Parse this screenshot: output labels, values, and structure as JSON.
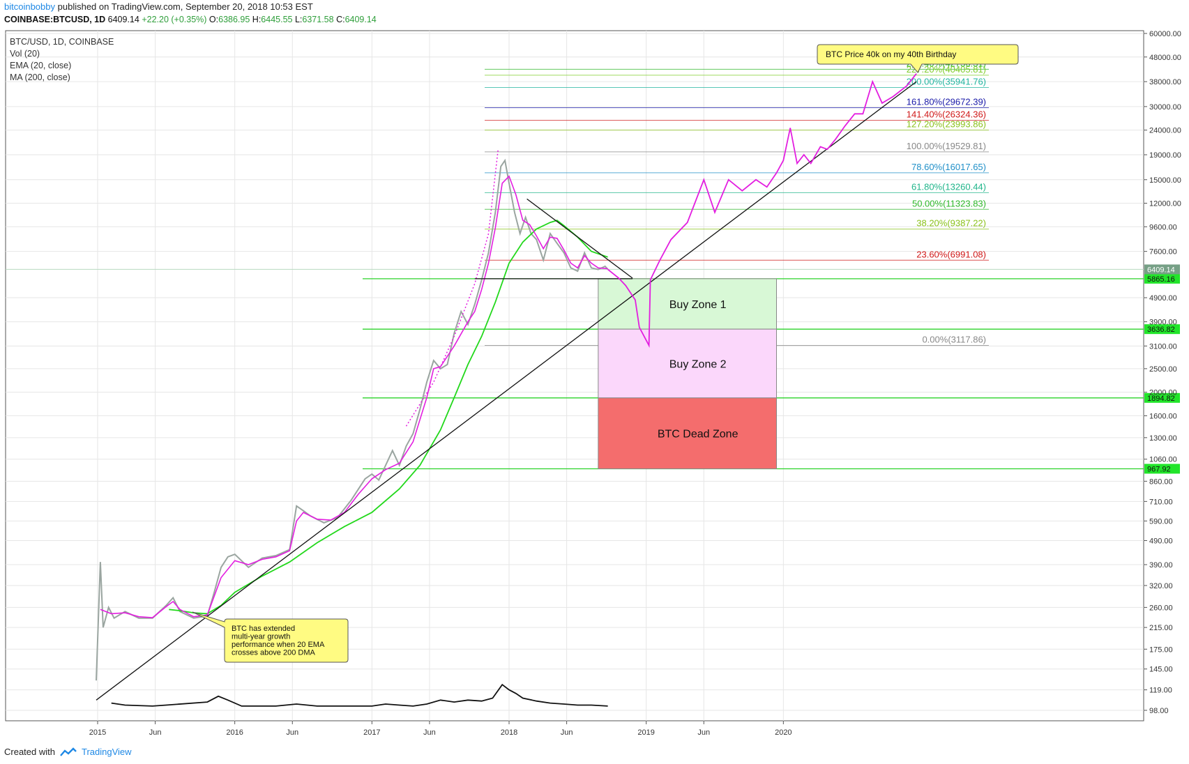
{
  "header": {
    "author": "bitcoinbobby",
    "published": "published on TradingView.com, September 20, 2018 10:53 EST"
  },
  "subheader": {
    "symbol": "COINBASE:BTCUSD, 1D",
    "price": "6409.14",
    "change": "+22.20 (+0.35%)",
    "o_label": "O:",
    "o": "6386.95",
    "h_label": "H:",
    "h": "6445.55",
    "l_label": "L:",
    "l": "6371.58",
    "c_label": "C:",
    "c": "6409.14"
  },
  "footer": {
    "created": "Created with",
    "brand": "TradingView"
  },
  "colors": {
    "price_candle": "#9aa5a0",
    "ema": "#e31ee0",
    "ma": "#22d81b",
    "volume": "#111111",
    "grid": "#e6e6e6",
    "zone1": "#d8f8d6",
    "zone2": "#fbd7fb",
    "dead_zone": "#f46d6d",
    "level": "#2bd32a"
  },
  "chart_data": {
    "type": "line",
    "title": "BTC/USD, 1D, COINBASE",
    "indicators": [
      "Vol (20)",
      "EMA (20, close)",
      "MA (200, close)"
    ],
    "y_scale": "log",
    "ylim": [
      85,
      65000
    ],
    "x_ticks": [
      "2015",
      "Jun",
      "2016",
      "Jun",
      "2017",
      "Jun",
      "2018",
      "Jun",
      "2019",
      "Jun",
      "2020"
    ],
    "x_tick_values": [
      2015.0,
      2015.42,
      2016.0,
      2016.42,
      2017.0,
      2017.42,
      2018.0,
      2018.42,
      2019.0,
      2019.42,
      2020.0
    ],
    "y_ticks": [
      "60000.00",
      "48000.00",
      "38000.00",
      "30000.00",
      "24000.00",
      "19000.00",
      "15000.00",
      "12000.00",
      "9600.00",
      "7600.00",
      "4900.00",
      "3900.00",
      "3100.00",
      "2500.00",
      "2000.00",
      "1600.00",
      "1300.00",
      "1060.00",
      "860.00",
      "710.00",
      "590.00",
      "490.00",
      "390.00",
      "320.00",
      "260.00",
      "215.00",
      "175.00",
      "145.00",
      "119.00",
      "98.00"
    ],
    "y_tick_values": [
      60000,
      48000,
      38000,
      30000,
      24000,
      19000,
      15000,
      12000,
      9600,
      7600,
      4900,
      3900,
      3100,
      2500,
      2000,
      1600,
      1300,
      1060,
      860,
      710,
      590,
      490,
      390,
      320,
      260,
      215,
      175,
      145,
      119,
      98
    ],
    "last_price_label": "6409.14",
    "last_price": 6409.14,
    "fib_levels": [
      {
        "label": "241.40%(42736.31)",
        "value": 42736.31,
        "color": "#2fb82a"
      },
      {
        "label": "227.20%(40405.81)",
        "value": 40405.81,
        "color": "#7fcd2a"
      },
      {
        "label": "200.00%(35941.76)",
        "value": 35941.76,
        "color": "#22b5a0"
      },
      {
        "label": "161.80%(29672.39)",
        "value": 29672.39,
        "color": "#1a1aa8"
      },
      {
        "label": "141.40%(26324.36)",
        "value": 26324.36,
        "color": "#d01818"
      },
      {
        "label": "127.20%(23993.86)",
        "value": 23993.86,
        "color": "#8ac21a"
      },
      {
        "label": "100.00%(19529.81)",
        "value": 19529.81,
        "color": "#888888"
      },
      {
        "label": "78.60%(16017.65)",
        "value": 16017.65,
        "color": "#1f8fc8"
      },
      {
        "label": "61.80%(13260.44)",
        "value": 13260.44,
        "color": "#1fb58a"
      },
      {
        "label": "50.00%(11323.83)",
        "value": 11323.83,
        "color": "#2fb82a"
      },
      {
        "label": "38.20%(9387.22)",
        "value": 9387.22,
        "color": "#8ac21a"
      },
      {
        "label": "23.60%(6991.08)",
        "value": 6991.08,
        "color": "#d01818"
      },
      {
        "label": "0.00%(3117.86)",
        "value": 3117.86,
        "color": "#888888"
      }
    ],
    "horizontal_levels": [
      {
        "label": "5865.16",
        "value": 5865.16
      },
      {
        "label": "3636.82",
        "value": 3636.82
      },
      {
        "label": "1894.82",
        "value": 1894.82
      },
      {
        "label": "967.92",
        "value": 967.92
      }
    ],
    "zones": [
      {
        "label": "Buy Zone 1",
        "low": 3636.82,
        "high": 5865.16,
        "x_start": 2018.65,
        "x_end": 2019.95
      },
      {
        "label": "Buy Zone 2",
        "low": 1894.82,
        "high": 3636.82,
        "x_start": 2018.65,
        "x_end": 2019.95
      },
      {
        "label": "BTC Dead Zone",
        "low": 967.92,
        "high": 1894.82,
        "x_start": 2018.65,
        "x_end": 2019.95
      }
    ],
    "annotations": [
      {
        "text": "BTC Price 40k on my 40th Birthday",
        "x": 2020.0,
        "y": 44000
      },
      {
        "text": "BTC has extended multi-year growth performance when 20 EMA crosses above 200 DMA",
        "x": 2015.95,
        "y": 205
      }
    ],
    "price_series": {
      "name": "",
      "points": [
        [
          2014.99,
          130
        ],
        [
          2015.02,
          400
        ],
        [
          2015.04,
          215
        ],
        [
          2015.08,
          260
        ],
        [
          2015.12,
          235
        ],
        [
          2015.2,
          250
        ],
        [
          2015.3,
          235
        ],
        [
          2015.4,
          235
        ],
        [
          2015.5,
          265
        ],
        [
          2015.55,
          285
        ],
        [
          2015.6,
          250
        ],
        [
          2015.7,
          235
        ],
        [
          2015.8,
          240
        ],
        [
          2015.85,
          300
        ],
        [
          2015.9,
          380
        ],
        [
          2015.95,
          420
        ],
        [
          2016.0,
          430
        ],
        [
          2016.1,
          380
        ],
        [
          2016.2,
          415
        ],
        [
          2016.3,
          425
        ],
        [
          2016.4,
          450
        ],
        [
          2016.45,
          680
        ],
        [
          2016.5,
          650
        ],
        [
          2016.55,
          620
        ],
        [
          2016.65,
          580
        ],
        [
          2016.75,
          610
        ],
        [
          2016.85,
          720
        ],
        [
          2016.95,
          880
        ],
        [
          2017.0,
          920
        ],
        [
          2017.05,
          870
        ],
        [
          2017.1,
          1000
        ],
        [
          2017.15,
          1150
        ],
        [
          2017.2,
          1000
        ],
        [
          2017.25,
          1200
        ],
        [
          2017.3,
          1350
        ],
        [
          2017.35,
          1700
        ],
        [
          2017.4,
          2200
        ],
        [
          2017.45,
          2700
        ],
        [
          2017.5,
          2500
        ],
        [
          2017.55,
          2600
        ],
        [
          2017.6,
          3500
        ],
        [
          2017.65,
          4300
        ],
        [
          2017.7,
          3800
        ],
        [
          2017.75,
          4600
        ],
        [
          2017.8,
          5800
        ],
        [
          2017.85,
          7500
        ],
        [
          2017.9,
          11000
        ],
        [
          2017.94,
          17000
        ],
        [
          2017.97,
          18000
        ],
        [
          2018.0,
          14500
        ],
        [
          2018.04,
          11000
        ],
        [
          2018.08,
          9000
        ],
        [
          2018.12,
          10500
        ],
        [
          2018.16,
          9000
        ],
        [
          2018.2,
          8500
        ],
        [
          2018.25,
          7000
        ],
        [
          2018.3,
          9000
        ],
        [
          2018.35,
          8200
        ],
        [
          2018.4,
          7500
        ],
        [
          2018.45,
          6500
        ],
        [
          2018.5,
          6300
        ],
        [
          2018.55,
          7500
        ],
        [
          2018.6,
          6500
        ],
        [
          2018.65,
          6400
        ],
        [
          2018.7,
          6600
        ],
        [
          2018.72,
          6409
        ]
      ]
    },
    "ema_series": {
      "name": "",
      "points": [
        [
          2015.02,
          255
        ],
        [
          2015.1,
          245
        ],
        [
          2015.2,
          247
        ],
        [
          2015.3,
          238
        ],
        [
          2015.4,
          236
        ],
        [
          2015.5,
          262
        ],
        [
          2015.55,
          275
        ],
        [
          2015.6,
          255
        ],
        [
          2015.7,
          238
        ],
        [
          2015.8,
          242
        ],
        [
          2015.9,
          345
        ],
        [
          2016.0,
          405
        ],
        [
          2016.1,
          390
        ],
        [
          2016.2,
          410
        ],
        [
          2016.3,
          420
        ],
        [
          2016.4,
          445
        ],
        [
          2016.45,
          590
        ],
        [
          2016.5,
          640
        ],
        [
          2016.6,
          600
        ],
        [
          2016.7,
          595
        ],
        [
          2016.8,
          640
        ],
        [
          2016.9,
          760
        ],
        [
          2017.0,
          880
        ],
        [
          2017.1,
          960
        ],
        [
          2017.2,
          1020
        ],
        [
          2017.3,
          1250
        ],
        [
          2017.4,
          1900
        ],
        [
          2017.45,
          2500
        ],
        [
          2017.5,
          2550
        ],
        [
          2017.6,
          3100
        ],
        [
          2017.7,
          3900
        ],
        [
          2017.75,
          4300
        ],
        [
          2017.8,
          5300
        ],
        [
          2017.85,
          6800
        ],
        [
          2017.9,
          9500
        ],
        [
          2017.95,
          14500
        ],
        [
          2018.0,
          15500
        ],
        [
          2018.05,
          13000
        ],
        [
          2018.1,
          10200
        ],
        [
          2018.15,
          9800
        ],
        [
          2018.2,
          8800
        ],
        [
          2018.25,
          7800
        ],
        [
          2018.3,
          8700
        ],
        [
          2018.35,
          8600
        ],
        [
          2018.4,
          7700
        ],
        [
          2018.45,
          6800
        ],
        [
          2018.5,
          6500
        ],
        [
          2018.55,
          7300
        ],
        [
          2018.6,
          6800
        ],
        [
          2018.65,
          6500
        ],
        [
          2018.72,
          6450
        ]
      ]
    },
    "ma_series": {
      "name": "",
      "points": [
        [
          2015.52,
          255
        ],
        [
          2015.6,
          252
        ],
        [
          2015.7,
          247
        ],
        [
          2015.8,
          245
        ],
        [
          2015.9,
          265
        ],
        [
          2016.0,
          300
        ],
        [
          2016.2,
          350
        ],
        [
          2016.4,
          400
        ],
        [
          2016.6,
          480
        ],
        [
          2016.8,
          560
        ],
        [
          2017.0,
          640
        ],
        [
          2017.2,
          800
        ],
        [
          2017.35,
          1000
        ],
        [
          2017.5,
          1400
        ],
        [
          2017.6,
          1900
        ],
        [
          2017.7,
          2600
        ],
        [
          2017.8,
          3400
        ],
        [
          2017.9,
          4700
        ],
        [
          2018.0,
          6800
        ],
        [
          2018.1,
          8300
        ],
        [
          2018.2,
          9400
        ],
        [
          2018.3,
          10000
        ],
        [
          2018.35,
          10200
        ],
        [
          2018.4,
          9700
        ],
        [
          2018.5,
          8700
        ],
        [
          2018.6,
          7600
        ],
        [
          2018.72,
          7200
        ]
      ]
    },
    "projection_series": {
      "name": "",
      "points": [
        [
          2018.72,
          6409
        ],
        [
          2018.8,
          5900
        ],
        [
          2018.85,
          5500
        ],
        [
          2018.92,
          4800
        ],
        [
          2018.95,
          3700
        ],
        [
          2019.02,
          3117.86
        ],
        [
          2019.03,
          5800
        ],
        [
          2019.1,
          7000
        ],
        [
          2019.18,
          8500
        ],
        [
          2019.3,
          10000
        ],
        [
          2019.42,
          15000
        ],
        [
          2019.5,
          11000
        ],
        [
          2019.6,
          15000
        ],
        [
          2019.7,
          13500
        ],
        [
          2019.8,
          15000
        ],
        [
          2019.88,
          14000
        ],
        [
          2019.95,
          16000
        ],
        [
          2020.0,
          18000
        ],
        [
          2020.05,
          24500
        ],
        [
          2020.1,
          17500
        ],
        [
          2020.15,
          19000
        ],
        [
          2020.2,
          17500
        ],
        [
          2020.27,
          20500
        ],
        [
          2020.32,
          20000
        ],
        [
          2020.38,
          22000
        ],
        [
          2020.45,
          25000
        ],
        [
          2020.52,
          28000
        ],
        [
          2020.58,
          28000
        ],
        [
          2020.65,
          38000
        ],
        [
          2020.72,
          31000
        ],
        [
          2020.8,
          33000
        ],
        [
          2020.9,
          36500
        ],
        [
          2020.97,
          41000
        ]
      ]
    },
    "trendline": {
      "name": "",
      "points": [
        [
          2014.99,
          108
        ],
        [
          2020.97,
          38000
        ]
      ]
    },
    "triangle_upper": {
      "name": "",
      "points": [
        [
          2018.13,
          12500
        ],
        [
          2018.9,
          5900
        ]
      ]
    },
    "triangle_base": {
      "name": "",
      "points": [
        [
          2017.75,
          5865.16
        ],
        [
          2018.9,
          5865.16
        ]
      ]
    },
    "parabolic_curve": {
      "name": "",
      "points": [
        [
          2017.25,
          1450
        ],
        [
          2017.45,
          2200
        ],
        [
          2017.6,
          3400
        ],
        [
          2017.75,
          5600
        ],
        [
          2017.85,
          9000
        ],
        [
          2017.92,
          20000
        ]
      ]
    },
    "volume_series": {
      "name": "",
      "points": [
        [
          2015.1,
          105
        ],
        [
          2015.2,
          103
        ],
        [
          2015.4,
          102
        ],
        [
          2015.5,
          103
        ],
        [
          2015.8,
          106
        ],
        [
          2015.88,
          112
        ],
        [
          2015.95,
          108
        ],
        [
          2016.05,
          102
        ],
        [
          2016.3,
          102
        ],
        [
          2016.45,
          104
        ],
        [
          2016.6,
          102
        ],
        [
          2016.9,
          102
        ],
        [
          2017.0,
          102
        ],
        [
          2017.1,
          104
        ],
        [
          2017.2,
          103
        ],
        [
          2017.3,
          102
        ],
        [
          2017.4,
          104
        ],
        [
          2017.5,
          108
        ],
        [
          2017.6,
          106
        ],
        [
          2017.7,
          108
        ],
        [
          2017.8,
          107
        ],
        [
          2017.88,
          110
        ],
        [
          2017.95,
          125
        ],
        [
          2018.0,
          119
        ],
        [
          2018.05,
          115
        ],
        [
          2018.1,
          110
        ],
        [
          2018.2,
          107
        ],
        [
          2018.3,
          105
        ],
        [
          2018.4,
          104
        ],
        [
          2018.5,
          103
        ],
        [
          2018.6,
          103
        ],
        [
          2018.72,
          102
        ]
      ]
    }
  }
}
